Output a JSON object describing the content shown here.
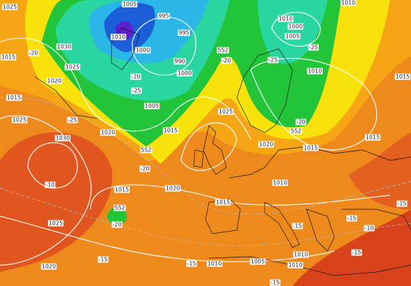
{
  "map": {
    "labels": [
      "1025",
      "1005",
      "1010",
      "1010",
      "1000",
      "1005",
      "995",
      "995",
      "1010",
      "1030",
      "1015",
      "1000",
      "-20",
      "552",
      "-20",
      "-25",
      "1010",
      "1025",
      "990",
      "1000",
      "-25",
      "1020",
      "-20",
      "-25",
      "1005",
      "1015",
      "1015",
      "1025",
      "-25",
      "1020",
      "1015",
      "-20",
      "552",
      "552",
      "1025",
      "1030",
      "-20",
      "1020",
      "1015",
      "1015",
      "1015",
      "1020",
      "1010",
      "1015",
      "-10",
      "552",
      "-20",
      "-15",
      "-10",
      "1025",
      "-15",
      "1010",
      "1005",
      "1010",
      "1020",
      "-15",
      "-15",
      "-15",
      "1010",
      "-15",
      "-15"
    ]
  }
}
